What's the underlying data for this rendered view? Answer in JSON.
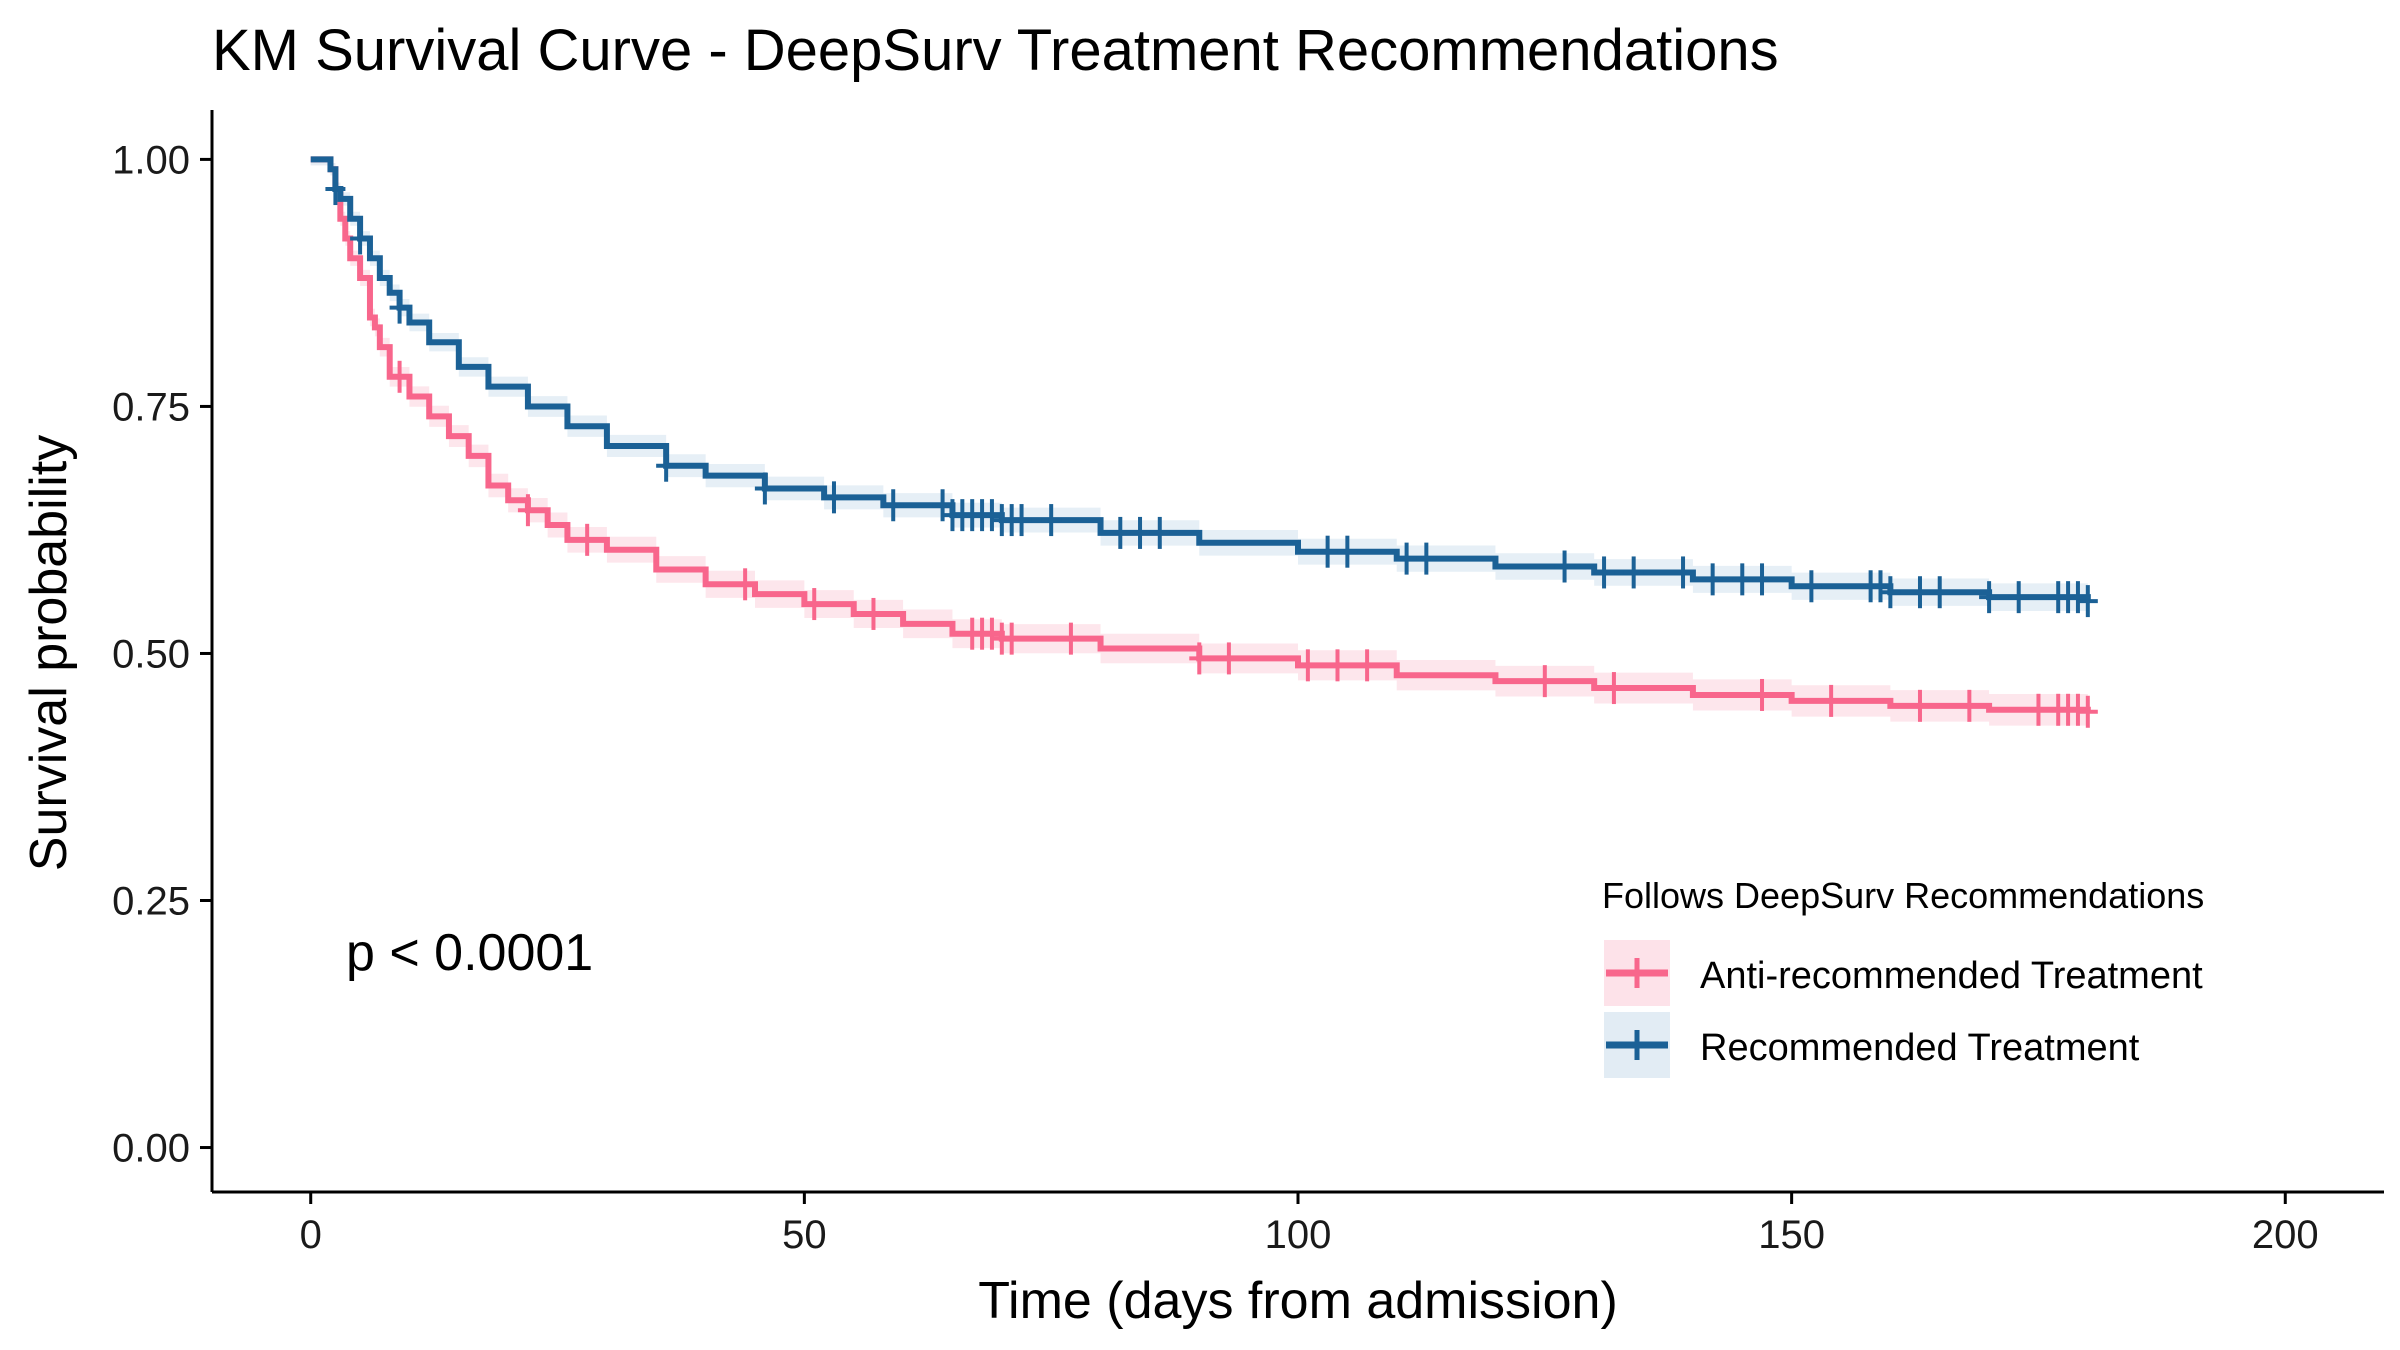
{
  "chart_data": {
    "type": "line",
    "subtype": "kaplan-meier step curve with confidence bands and censor marks",
    "title": "KM Survival Curve - DeepSurv Treatment Recommendations",
    "xlabel": "Time (days from admission)",
    "ylabel": "Survival probability",
    "xlim": [
      -10,
      210
    ],
    "ylim": [
      -0.045,
      1.05
    ],
    "x_ticks": [
      0,
      50,
      100,
      150,
      200
    ],
    "x_tick_labels": [
      "0",
      "50",
      "100",
      "150",
      "200"
    ],
    "y_ticks": [
      0,
      0.25,
      0.5,
      0.75,
      1
    ],
    "y_tick_labels": [
      "0.00",
      "0.25",
      "0.50",
      "0.75",
      "1.00"
    ],
    "grid": false,
    "annotation": "p < 0.0001",
    "legend": {
      "title": "Follows DeepSurv Recommendations",
      "position": "bottom-right inside"
    },
    "series": [
      {
        "name": "Anti-recommended Treatment",
        "color": "#f8668c",
        "band_color": "#fde2e9",
        "points": [
          [
            0,
            1.0
          ],
          [
            2,
            0.99
          ],
          [
            2.5,
            0.97
          ],
          [
            3,
            0.94
          ],
          [
            3.5,
            0.92
          ],
          [
            4,
            0.9
          ],
          [
            5,
            0.88
          ],
          [
            6,
            0.84
          ],
          [
            6.5,
            0.83
          ],
          [
            7,
            0.81
          ],
          [
            8,
            0.78
          ],
          [
            10,
            0.76
          ],
          [
            12,
            0.74
          ],
          [
            14,
            0.72
          ],
          [
            16,
            0.7
          ],
          [
            18,
            0.67
          ],
          [
            20,
            0.655
          ],
          [
            22,
            0.645
          ],
          [
            24,
            0.63
          ],
          [
            26,
            0.615
          ],
          [
            30,
            0.605
          ],
          [
            35,
            0.585
          ],
          [
            40,
            0.57
          ],
          [
            45,
            0.56
          ],
          [
            50,
            0.55
          ],
          [
            55,
            0.54
          ],
          [
            60,
            0.53
          ],
          [
            65,
            0.52
          ],
          [
            70,
            0.515
          ],
          [
            80,
            0.505
          ],
          [
            90,
            0.495
          ],
          [
            100,
            0.488
          ],
          [
            110,
            0.478
          ],
          [
            120,
            0.472
          ],
          [
            130,
            0.465
          ],
          [
            140,
            0.458
          ],
          [
            150,
            0.452
          ],
          [
            160,
            0.447
          ],
          [
            170,
            0.443
          ],
          [
            180,
            0.441
          ]
        ],
        "censor_times": [
          9,
          22,
          28,
          44,
          51,
          57,
          67,
          68,
          69,
          70,
          71,
          77,
          90,
          93,
          101,
          104,
          107,
          125,
          132,
          147,
          154,
          163,
          168,
          175,
          177,
          178,
          179,
          180
        ]
      },
      {
        "name": "Recommended Treatment",
        "color": "#1b6196",
        "band_color": "#e2ecf4",
        "points": [
          [
            0,
            1.0
          ],
          [
            2,
            0.99
          ],
          [
            2.5,
            0.97
          ],
          [
            3,
            0.96
          ],
          [
            4,
            0.94
          ],
          [
            5,
            0.92
          ],
          [
            6,
            0.9
          ],
          [
            7,
            0.88
          ],
          [
            8,
            0.865
          ],
          [
            9,
            0.85
          ],
          [
            10,
            0.835
          ],
          [
            12,
            0.815
          ],
          [
            15,
            0.79
          ],
          [
            18,
            0.77
          ],
          [
            22,
            0.75
          ],
          [
            26,
            0.73
          ],
          [
            30,
            0.71
          ],
          [
            36,
            0.69
          ],
          [
            40,
            0.68
          ],
          [
            46,
            0.667
          ],
          [
            52,
            0.658
          ],
          [
            58,
            0.65
          ],
          [
            65,
            0.64
          ],
          [
            70,
            0.635
          ],
          [
            80,
            0.622
          ],
          [
            90,
            0.612
          ],
          [
            100,
            0.603
          ],
          [
            110,
            0.596
          ],
          [
            120,
            0.588
          ],
          [
            130,
            0.582
          ],
          [
            140,
            0.575
          ],
          [
            150,
            0.568
          ],
          [
            160,
            0.562
          ],
          [
            170,
            0.557
          ],
          [
            180,
            0.553
          ]
        ],
        "censor_times": [
          2.5,
          5,
          9,
          36,
          46,
          53,
          59,
          64,
          65,
          66,
          67,
          68,
          69,
          70,
          71,
          72,
          75,
          82,
          84,
          86,
          103,
          105,
          111,
          113,
          127,
          131,
          134,
          139,
          142,
          145,
          147,
          152,
          158,
          159,
          160,
          163,
          165,
          170,
          173,
          177,
          178,
          179,
          180
        ]
      }
    ]
  }
}
